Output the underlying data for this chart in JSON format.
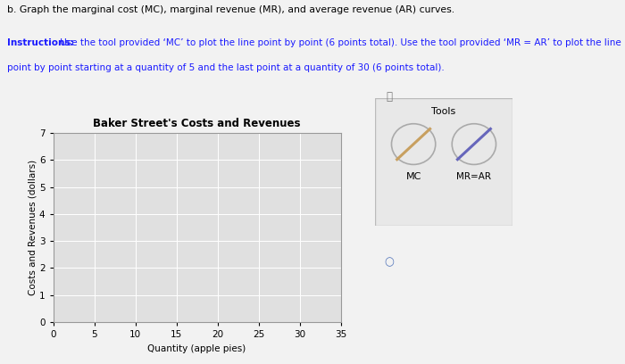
{
  "title": "Baker Street's Costs and Revenues",
  "xlabel": "Quantity (apple pies)",
  "ylabel": "Costs and Revenues (dollars)",
  "xlim": [
    0,
    35
  ],
  "ylim": [
    0,
    7
  ],
  "xticks": [
    0,
    5,
    10,
    15,
    20,
    25,
    30,
    35
  ],
  "yticks": [
    0,
    1,
    2,
    3,
    4,
    5,
    6,
    7
  ],
  "header_text": "b. Graph the marginal cost (MC), marginal revenue (MR), and average revenue (AR) curves.",
  "instr_bold": "Instructions:",
  "instr_rest1": " Use the tool provided ‘MC’ to plot the line point by point (6 points total). Use the tool provided ‘MR = AR’ to plot the line",
  "instr_rest2": "point by point starting at a quantity of 5 and the last point at a quantity of 30 (6 points total).",
  "tools_label": "Tools",
  "mc_label": "MC",
  "mr_ar_label": "MR=AR",
  "mc_color": "#c8a060",
  "mr_ar_color": "#6666bb",
  "plot_bg_color": "#e0e0e0",
  "grid_color": "#ffffff",
  "figure_bg": "#f2f2f2",
  "tools_bg": "#e8e8e8"
}
